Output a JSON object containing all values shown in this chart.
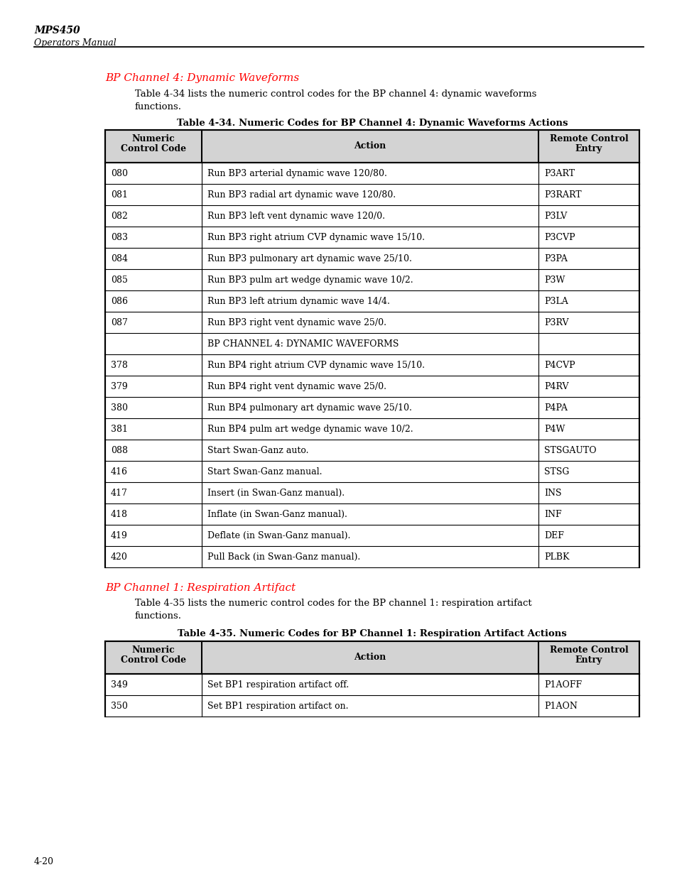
{
  "page_title": "MPS450",
  "page_subtitle": "Operators Manual",
  "section1_title": "BP Channel 4: Dynamic Waveforms",
  "section1_body1": "Table 4-34 lists the numeric control codes for the BP channel 4: dynamic waveforms",
  "section1_body2": "functions.",
  "table1_title": "Table 4-34. Numeric Codes for BP Channel 4: Dynamic Waveforms Actions",
  "table1_rows": [
    [
      "080",
      "Run BP3 arterial dynamic wave 120/80.",
      "P3ART"
    ],
    [
      "081",
      "Run BP3 radial art dynamic wave 120/80.",
      "P3RART"
    ],
    [
      "082",
      "Run BP3 left vent dynamic wave 120/0.",
      "P3LV"
    ],
    [
      "083",
      "Run BP3 right atrium CVP dynamic wave 15/10.",
      "P3CVP"
    ],
    [
      "084",
      "Run BP3 pulmonary art dynamic wave 25/10.",
      "P3PA"
    ],
    [
      "085",
      "Run BP3 pulm art wedge dynamic wave 10/2.",
      "P3W"
    ],
    [
      "086",
      "Run BP3 left atrium dynamic wave 14/4.",
      "P3LA"
    ],
    [
      "087",
      "Run BP3 right vent dynamic wave 25/0.",
      "P3RV"
    ],
    [
      "",
      "BP CHANNEL 4: DYNAMIC WAVEFORMS",
      ""
    ],
    [
      "378",
      "Run BP4 right atrium CVP dynamic wave 15/10.",
      "P4CVP"
    ],
    [
      "379",
      "Run BP4 right vent dynamic wave 25/0.",
      "P4RV"
    ],
    [
      "380",
      "Run BP4 pulmonary art dynamic wave 25/10.",
      "P4PA"
    ],
    [
      "381",
      "Run BP4 pulm art wedge dynamic wave 10/2.",
      "P4W"
    ],
    [
      "088",
      "Start Swan-Ganz auto.",
      "STSGAUTO"
    ],
    [
      "416",
      "Start Swan-Ganz manual.",
      "STSG"
    ],
    [
      "417",
      "Insert (in Swan-Ganz manual).",
      "INS"
    ],
    [
      "418",
      "Inflate (in Swan-Ganz manual).",
      "INF"
    ],
    [
      "419",
      "Deflate (in Swan-Ganz manual).",
      "DEF"
    ],
    [
      "420",
      "Pull Back (in Swan-Ganz manual).",
      "PLBK"
    ]
  ],
  "section2_title": "BP Channel 1: Respiration Artifact",
  "section2_body1": "Table 4-35 lists the numeric control codes for the BP channel 1: respiration artifact",
  "section2_body2": "functions.",
  "table2_title": "Table 4-35. Numeric Codes for BP Channel 1: Respiration Artifact Actions",
  "table2_rows": [
    [
      "349",
      "Set BP1 respiration artifact off.",
      "P1AOFF"
    ],
    [
      "350",
      "Set BP1 respiration artifact on.",
      "P1AON"
    ]
  ],
  "page_number": "4-20",
  "red_color": "#FF0000",
  "header_bg": "#D3D3D3"
}
